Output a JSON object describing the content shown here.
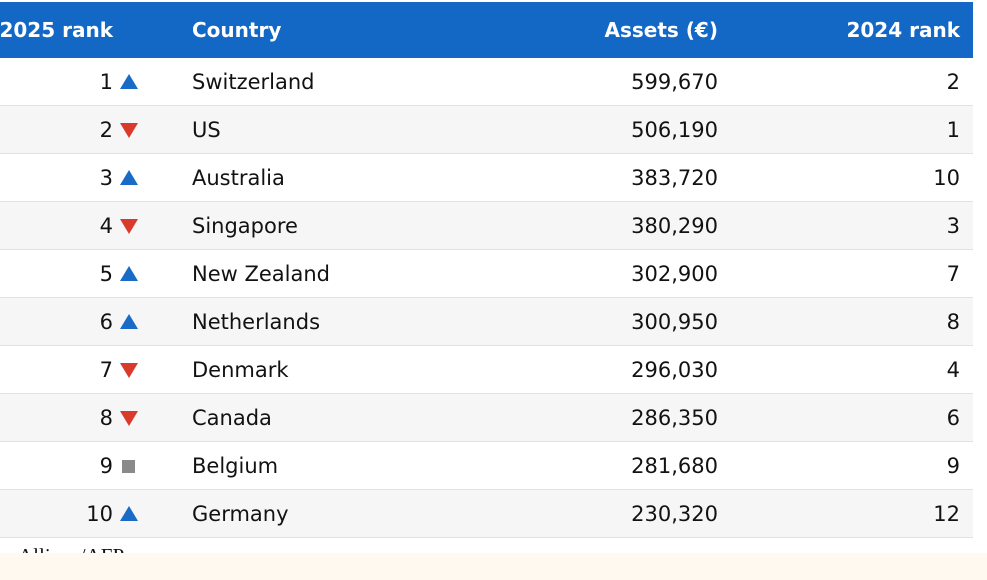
{
  "table": {
    "header": [
      "2025 rank",
      "Country",
      "Assets (€)",
      "2024 rank"
    ],
    "rows": [
      {
        "rank": 1,
        "trend": "up",
        "country": "Switzerland",
        "assets": "599,670",
        "rank_2024": 2
      },
      {
        "rank": 2,
        "trend": "down",
        "country": "US",
        "assets": "506,190",
        "rank_2024": 1
      },
      {
        "rank": 3,
        "trend": "up",
        "country": "Australia",
        "assets": "383,720",
        "rank_2024": 10
      },
      {
        "rank": 4,
        "trend": "down",
        "country": "Singapore",
        "assets": "380,290",
        "rank_2024": 3
      },
      {
        "rank": 5,
        "trend": "up",
        "country": "New Zealand",
        "assets": "302,900",
        "rank_2024": 7
      },
      {
        "rank": 6,
        "trend": "up",
        "country": "Netherlands",
        "assets": "300,950",
        "rank_2024": 8
      },
      {
        "rank": 7,
        "trend": "down",
        "country": "Denmark",
        "assets": "296,030",
        "rank_2024": 4
      },
      {
        "rank": 8,
        "trend": "down",
        "country": "Canada",
        "assets": "286,350",
        "rank_2024": 6
      },
      {
        "rank": 9,
        "trend": "same",
        "country": "Belgium",
        "assets": "281,680",
        "rank_2024": 9
      },
      {
        "rank": 10,
        "trend": "up",
        "country": "Germany",
        "assets": "230,320",
        "rank_2024": 12
      }
    ],
    "source": "Allianz/AFP"
  }
}
